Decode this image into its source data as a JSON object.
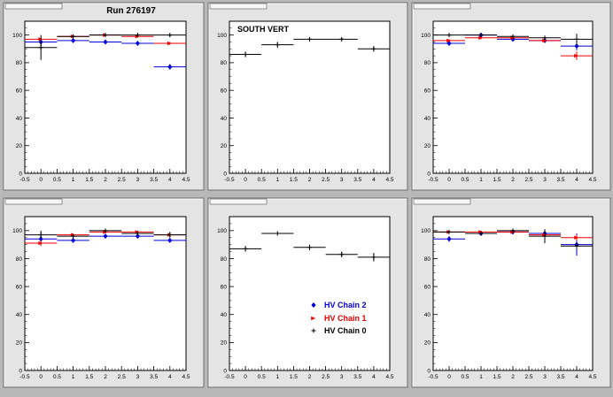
{
  "header": {
    "run_label": "Run 276197"
  },
  "legend": {
    "entries": [
      {
        "label": "HV Chain 2",
        "color": "#0000dd",
        "marker": "diamond"
      },
      {
        "label": "HV Chain 1",
        "color": "#ee0000",
        "marker": "tri"
      },
      {
        "label": "HV Chain 0",
        "color": "#000000",
        "marker": "plus"
      }
    ]
  },
  "chart_data": [
    {
      "type": "scatter",
      "title": "",
      "annotation": "",
      "xlim": [
        -0.5,
        4.5
      ],
      "ylim": [
        0,
        110
      ],
      "grid": false,
      "x_ticks": [
        "-0.5",
        "0",
        "0.5",
        "1",
        "1.5",
        "2",
        "2.5",
        "3",
        "3.5",
        "4",
        "4.5"
      ],
      "y_ticks": [
        "0",
        "20",
        "40",
        "60",
        "80",
        "100"
      ],
      "series": [
        {
          "color": "#0000dd",
          "marker": "diamond",
          "x": [
            0,
            1,
            2,
            3,
            4
          ],
          "y": [
            95,
            96,
            95,
            94,
            77
          ],
          "err": [
            3,
            1,
            1,
            1,
            2
          ]
        },
        {
          "color": "#ee0000",
          "marker": "tri",
          "x": [
            0,
            1,
            2,
            3,
            4
          ],
          "y": [
            97,
            99,
            100,
            99,
            94
          ],
          "err": [
            1,
            1,
            1,
            1,
            1
          ]
        },
        {
          "color": "#000000",
          "marker": "plus",
          "x": [
            0,
            1,
            2,
            3,
            4
          ],
          "y": [
            91,
            99,
            100,
            100,
            100
          ],
          "err": [
            9,
            1,
            1,
            1,
            1
          ]
        }
      ]
    },
    {
      "type": "scatter",
      "title": "",
      "annotation": "SOUTH VERT",
      "xlim": [
        -0.5,
        4.5
      ],
      "ylim": [
        0,
        110
      ],
      "grid": false,
      "x_ticks": [
        "-0.5",
        "0",
        "0.5",
        "1",
        "1.5",
        "2",
        "2.5",
        "3",
        "3.5",
        "4",
        "4.5"
      ],
      "y_ticks": [
        "0",
        "20",
        "40",
        "60",
        "80",
        "100"
      ],
      "series": [
        {
          "color": "#000000",
          "marker": "plus",
          "x": [
            0,
            1,
            2,
            3,
            4
          ],
          "y": [
            86,
            93,
            97,
            97,
            90
          ],
          "err": [
            2,
            2,
            1,
            1,
            2
          ]
        }
      ]
    },
    {
      "type": "scatter",
      "title": "",
      "annotation": "",
      "xlim": [
        -0.5,
        4.5
      ],
      "ylim": [
        0,
        110
      ],
      "grid": false,
      "x_ticks": [
        "-0.5",
        "0",
        "0.5",
        "1",
        "1.5",
        "2",
        "2.5",
        "3",
        "3.5",
        "4",
        "4.5"
      ],
      "y_ticks": [
        "0",
        "20",
        "40",
        "60",
        "80",
        "100"
      ],
      "series": [
        {
          "color": "#0000dd",
          "marker": "diamond",
          "x": [
            0,
            1,
            2,
            3,
            4
          ],
          "y": [
            94,
            100,
            97,
            96,
            92
          ],
          "err": [
            1,
            1,
            1,
            1,
            3
          ]
        },
        {
          "color": "#ee0000",
          "marker": "tri",
          "x": [
            0,
            1,
            2,
            3,
            4
          ],
          "y": [
            96,
            98,
            98,
            96,
            85
          ],
          "err": [
            1,
            1,
            1,
            1,
            3
          ]
        },
        {
          "color": "#000000",
          "marker": "plus",
          "x": [
            0,
            1,
            2,
            3,
            4
          ],
          "y": [
            100,
            100,
            99,
            98,
            97
          ],
          "err": [
            1,
            1,
            1,
            1,
            4
          ]
        }
      ]
    },
    {
      "type": "scatter",
      "title": "",
      "annotation": "",
      "xlim": [
        -0.5,
        4.5
      ],
      "ylim": [
        0,
        110
      ],
      "grid": false,
      "x_ticks": [
        "-0.5",
        "0",
        "0.5",
        "1",
        "1.5",
        "2",
        "2.5",
        "3",
        "3.5",
        "4",
        "4.5"
      ],
      "y_ticks": [
        "0",
        "20",
        "40",
        "60",
        "80",
        "100"
      ],
      "series": [
        {
          "color": "#0000dd",
          "marker": "diamond",
          "x": [
            0,
            1,
            2,
            3,
            4
          ],
          "y": [
            94,
            93,
            96,
            96,
            93
          ],
          "err": [
            2,
            1,
            1,
            1,
            1
          ]
        },
        {
          "color": "#ee0000",
          "marker": "tri",
          "x": [
            0,
            1,
            2,
            3,
            4
          ],
          "y": [
            91,
            97,
            99,
            99,
            97
          ],
          "err": [
            2,
            1,
            1,
            1,
            1
          ]
        },
        {
          "color": "#000000",
          "marker": "plus",
          "x": [
            0,
            1,
            2,
            3,
            4
          ],
          "y": [
            97,
            96,
            100,
            98,
            97
          ],
          "err": [
            3,
            1,
            1,
            1,
            2
          ]
        }
      ]
    },
    {
      "type": "scatter",
      "title": "",
      "annotation": "",
      "xlim": [
        -0.5,
        4.5
      ],
      "ylim": [
        0,
        110
      ],
      "grid": false,
      "x_ticks": [
        "-0.5",
        "0",
        "0.5",
        "1",
        "1.5",
        "2",
        "2.5",
        "3",
        "3.5",
        "4",
        "4.5"
      ],
      "y_ticks": [
        "0",
        "20",
        "40",
        "60",
        "80",
        "100"
      ],
      "series": [
        {
          "color": "#000000",
          "marker": "plus",
          "x": [
            0,
            1,
            2,
            3,
            4
          ],
          "y": [
            87,
            98,
            88,
            83,
            81
          ],
          "err": [
            2,
            1,
            2,
            2,
            3
          ]
        }
      ]
    },
    {
      "type": "scatter",
      "title": "",
      "annotation": "",
      "xlim": [
        -0.5,
        4.5
      ],
      "ylim": [
        0,
        110
      ],
      "grid": false,
      "x_ticks": [
        "-0.5",
        "0",
        "0.5",
        "1",
        "1.5",
        "2",
        "2.5",
        "3",
        "3.5",
        "4",
        "4.5"
      ],
      "y_ticks": [
        "0",
        "20",
        "40",
        "60",
        "80",
        "100"
      ],
      "series": [
        {
          "color": "#0000dd",
          "marker": "diamond",
          "x": [
            0,
            1,
            2,
            3,
            4
          ],
          "y": [
            94,
            98,
            99,
            98,
            90
          ],
          "err": [
            2,
            1,
            1,
            1,
            8
          ]
        },
        {
          "color": "#ee0000",
          "marker": "tri",
          "x": [
            0,
            1,
            2,
            3,
            4
          ],
          "y": [
            99,
            99,
            99,
            97,
            95
          ],
          "err": [
            1,
            1,
            1,
            1,
            2
          ]
        },
        {
          "color": "#000000",
          "marker": "plus",
          "x": [
            0,
            1,
            2,
            3,
            4
          ],
          "y": [
            99,
            98,
            100,
            96,
            89
          ],
          "err": [
            1,
            1,
            1,
            5,
            2
          ]
        }
      ]
    }
  ]
}
